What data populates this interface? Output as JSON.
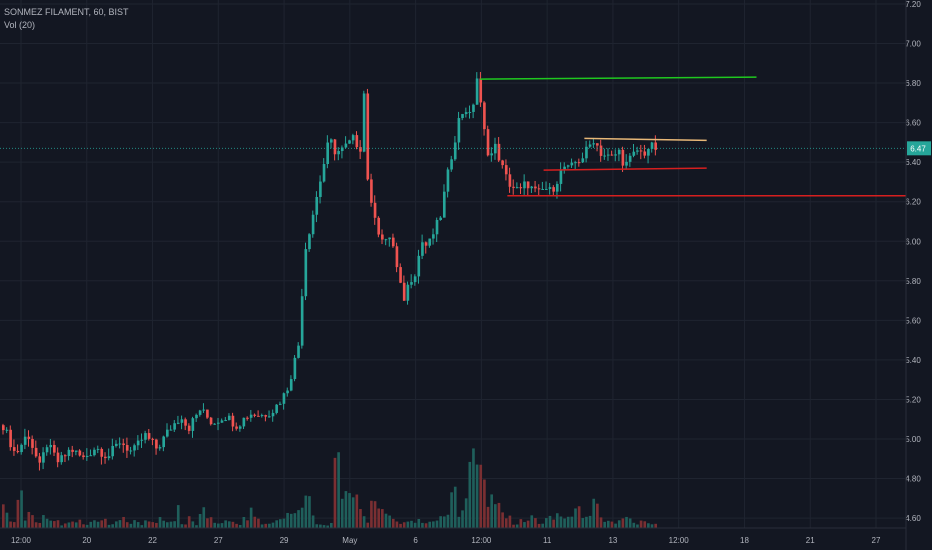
{
  "header": {
    "symbol_line": "SONMEZ FILAMENT, 60, BIST",
    "volume_line": "Vol (20)"
  },
  "colors": {
    "background": "#131722",
    "grid": "#1f2430",
    "axis_text": "#b2b5be",
    "up": "#26a69a",
    "down": "#ef5350",
    "up_volume": "#1f5f5b",
    "down_volume": "#7a2f32",
    "last_price": "#26a69a",
    "resistance_green": "#1fc71f",
    "support_red": "#d61f1f",
    "trend_orange": "#e8b878"
  },
  "chart_data": {
    "type": "candlestick",
    "title": "SONMEZ FILAMENT, 60, BIST",
    "indicator": "Vol (20)",
    "y_axis": {
      "ticks": [
        "7.20",
        "7.00",
        "6.80",
        "6.60",
        "6.40",
        "6.20",
        "6.00",
        "5.80",
        "5.60",
        "5.40",
        "5.20",
        "5.00",
        "4.80",
        "4.60"
      ],
      "range": [
        4.55,
        7.22
      ]
    },
    "x_axis": {
      "ticks": [
        "12:00",
        "20",
        "22",
        "27",
        "29",
        "May",
        "6",
        "12:00",
        "11",
        "13",
        "12:00",
        "18",
        "21",
        "27"
      ]
    },
    "last_price": "6.47",
    "grid": true,
    "price_path": [
      [
        0,
        5.07
      ],
      [
        2,
        4.92
      ],
      [
        4,
        5.03
      ],
      [
        6,
        4.85
      ],
      [
        7,
        4.98
      ],
      [
        9,
        4.88
      ],
      [
        11,
        4.95
      ],
      [
        13,
        4.9
      ],
      [
        15,
        4.96
      ],
      [
        17,
        4.91
      ],
      [
        19,
        4.99
      ],
      [
        21,
        4.93
      ],
      [
        23,
        5.02
      ],
      [
        25,
        4.95
      ],
      [
        27,
        5.05
      ],
      [
        29,
        5.12
      ],
      [
        30,
        5.05
      ],
      [
        32,
        5.15
      ],
      [
        34,
        5.08
      ],
      [
        36,
        5.12
      ],
      [
        38,
        5.07
      ],
      [
        40,
        5.13
      ],
      [
        42,
        5.12
      ],
      [
        44,
        5.15
      ],
      [
        46,
        5.24
      ],
      [
        47,
        5.35
      ],
      [
        48,
        5.48
      ],
      [
        49,
        5.95
      ],
      [
        53,
        6.52
      ],
      [
        54,
        6.45
      ],
      [
        55,
        6.46
      ],
      [
        57,
        6.52
      ],
      [
        58,
        6.46
      ],
      [
        59,
        6.92
      ],
      [
        59.3,
        6.1
      ],
      [
        60,
        6.2
      ],
      [
        61,
        6.05
      ],
      [
        62,
        5.98
      ],
      [
        63,
        6.04
      ],
      [
        64,
        5.85
      ],
      [
        65,
        5.7
      ],
      [
        66,
        5.8
      ],
      [
        67,
        5.85
      ],
      [
        68,
        6.0
      ],
      [
        69,
        5.97
      ],
      [
        70,
        6.05
      ],
      [
        71,
        6.12
      ],
      [
        72,
        6.3
      ],
      [
        73,
        6.46
      ],
      [
        74,
        6.61
      ],
      [
        75,
        6.68
      ],
      [
        76,
        6.62
      ],
      [
        77,
        6.83
      ],
      [
        78,
        6.58
      ],
      [
        79,
        6.42
      ],
      [
        80,
        6.48
      ],
      [
        81,
        6.38
      ],
      [
        82,
        6.3
      ],
      [
        83,
        6.27
      ],
      [
        84,
        6.25
      ],
      [
        85,
        6.3
      ],
      [
        86,
        6.26
      ],
      [
        87,
        6.24
      ],
      [
        88,
        6.27
      ],
      [
        89,
        6.25
      ],
      [
        90,
        6.31
      ],
      [
        91,
        6.38
      ],
      [
        92,
        6.36
      ],
      [
        93,
        6.4
      ],
      [
        94,
        6.42
      ],
      [
        95,
        6.47
      ],
      [
        96,
        6.52
      ],
      [
        97,
        6.45
      ],
      [
        98,
        6.43
      ],
      [
        99,
        6.42
      ],
      [
        100,
        6.46
      ],
      [
        101,
        6.38
      ],
      [
        102,
        6.42
      ],
      [
        103,
        6.46
      ],
      [
        104,
        6.44
      ],
      [
        105,
        6.48
      ],
      [
        106,
        6.47
      ]
    ],
    "volume_levels": [
      0.2,
      0.05,
      0.3,
      0.08,
      0.15,
      0.05,
      0.12,
      0.1,
      0.08,
      0.04,
      0.06,
      0.05,
      0.1,
      0.04,
      0.06,
      0.05,
      0.08,
      0.03,
      0.07,
      0.1,
      0.05,
      0.08,
      0.04,
      0.09,
      0.05,
      0.12,
      0.06,
      0.08,
      0.3,
      0.05,
      0.1,
      0.04,
      0.2,
      0.12,
      0.06,
      0.05,
      0.1,
      0.08,
      0.04,
      0.1,
      0.3,
      0.1,
      0.05,
      0.06,
      0.08,
      0.1,
      0.12,
      0.2,
      0.18,
      0.28,
      0.1,
      0.05,
      0.03,
      0.04,
      1.0,
      0.3,
      0.4,
      0.3,
      0.15,
      0.05,
      0.4,
      0.2,
      0.15,
      0.1,
      0.05,
      0.05,
      0.1,
      0.08,
      0.06,
      0.05,
      0.08,
      0.1,
      0.2,
      0.35,
      0.15,
      0.25,
      0.85,
      0.55,
      0.4,
      0.3,
      0.2,
      0.15,
      0.1,
      0.05,
      0.08,
      0.06,
      0.1,
      0.05,
      0.08,
      0.12,
      0.15,
      0.1,
      0.1,
      0.2,
      0.15,
      0.1,
      0.25,
      0.1,
      0.08,
      0.05,
      0.06,
      0.1,
      0.08,
      0.05,
      0.06,
      0.05,
      0.04
    ],
    "horizontal_lines": [
      {
        "name": "resistance-line",
        "color_key": "resistance_green",
        "price_from": 6.82,
        "price_to": 6.83,
        "x_from": 0.53,
        "x_to": 0.835
      },
      {
        "name": "support-line",
        "color_key": "support_red",
        "price_from": 6.23,
        "price_to": 6.23,
        "x_from": 0.56,
        "x_to": 1.0
      },
      {
        "name": "channel-lower",
        "color_key": "support_red",
        "price_from": 6.36,
        "price_to": 6.37,
        "x_from": 0.6,
        "x_to": 0.78
      },
      {
        "name": "channel-upper",
        "color_key": "trend_orange",
        "price_from": 6.52,
        "price_to": 6.51,
        "x_from": 0.645,
        "x_to": 0.78
      }
    ]
  }
}
